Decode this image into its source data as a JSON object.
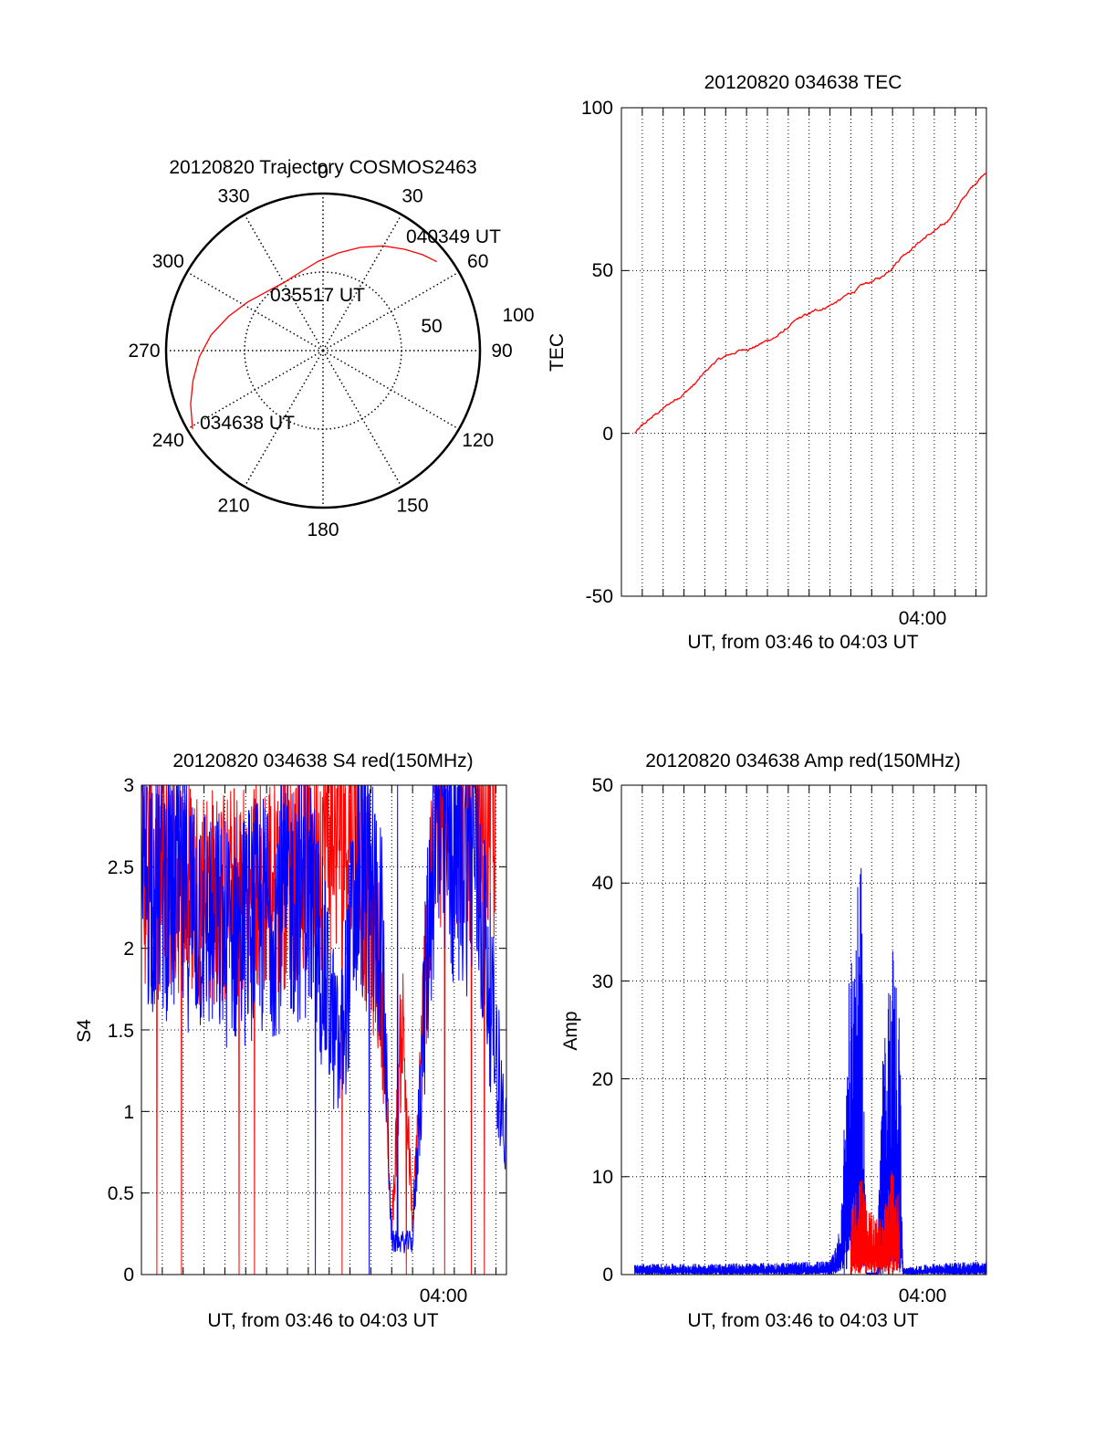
{
  "colors": {
    "red": "#ff0000",
    "blue": "#0000ff",
    "axis": "#000000"
  },
  "polar": {
    "title": "20120820 Trajectory COSMOS2463",
    "azimuth_labels": [
      "0",
      "30",
      "60",
      "90",
      "120",
      "150",
      "180",
      "210",
      "240",
      "270",
      "300",
      "330"
    ],
    "ring_labels": [
      "50",
      "100"
    ],
    "chart_data": {
      "type": "polar-trajectory",
      "title": "20120820 Trajectory COSMOS2463",
      "rmax": 100,
      "rings": [
        50,
        100
      ],
      "azimuth_step_deg": 30,
      "trajectory": [
        {
          "az": 239,
          "r": 97
        },
        {
          "az": 248,
          "r": 91
        },
        {
          "az": 257,
          "r": 85
        },
        {
          "az": 267,
          "r": 79
        },
        {
          "az": 278,
          "r": 72
        },
        {
          "az": 290,
          "r": 64
        },
        {
          "az": 303,
          "r": 57
        },
        {
          "az": 316,
          "r": 52
        },
        {
          "az": 330,
          "r": 50
        },
        {
          "az": 344,
          "r": 52
        },
        {
          "az": 357,
          "r": 57
        },
        {
          "az": 9,
          "r": 63
        },
        {
          "az": 20,
          "r": 70
        },
        {
          "az": 30,
          "r": 77
        },
        {
          "az": 39,
          "r": 83
        },
        {
          "az": 46,
          "r": 88
        },
        {
          "az": 52,
          "r": 92
        }
      ],
      "annotations": [
        {
          "text": "040349 UT",
          "az": 52,
          "r": 92
        },
        {
          "text": "035517 UT",
          "az": 330,
          "r": 50
        },
        {
          "text": "034638 UT",
          "az": 239,
          "r": 97
        }
      ]
    }
  },
  "tec": {
    "title": "20120820 034638 TEC",
    "ylabel": "TEC",
    "xlabel": "UT, from 03:46 to 04:03 UT",
    "yticks": [
      "100",
      "50",
      "0",
      "-50"
    ],
    "xtick_label": "04:00",
    "chart_data": {
      "type": "line",
      "title": "20120820 034638 TEC",
      "xlabel": "UT, from 03:46 to 04:03 UT",
      "ylabel": "TEC",
      "xlim": [
        "03:46:00",
        "04:03:30"
      ],
      "ylim": [
        -50,
        100
      ],
      "series": [
        {
          "color": "#ff0000",
          "points": [
            [
              "03:46:38",
              0
            ],
            [
              "03:47:30",
              5
            ],
            [
              "03:48:30",
              10
            ],
            [
              "03:49:30",
              15
            ],
            [
              "03:50:30",
              22
            ],
            [
              "03:51:30",
              25
            ],
            [
              "03:52:30",
              27
            ],
            [
              "03:53:30",
              30
            ],
            [
              "03:54:30",
              35
            ],
            [
              "03:55:30",
              38
            ],
            [
              "03:56:30",
              41
            ],
            [
              "03:57:30",
              45
            ],
            [
              "03:58:30",
              48
            ],
            [
              "03:59:30",
              55
            ],
            [
              "04:00:30",
              60
            ],
            [
              "04:01:30",
              64
            ],
            [
              "04:02:30",
              73
            ],
            [
              "04:03:30",
              81
            ]
          ]
        }
      ]
    }
  },
  "s4": {
    "title": "20120820 034638 S4 red(150MHz)",
    "ylabel": "S4",
    "xlabel": "UT, from 03:46 to 04:03 UT",
    "yticks": [
      "3",
      "2.5",
      "2",
      "1.5",
      "1",
      "0.5",
      "0"
    ],
    "xtick_label": "04:00",
    "chart_data": {
      "type": "line",
      "title": "20120820 034638 S4 red(150MHz)",
      "xlabel": "UT, from 03:46 to 04:03 UT",
      "ylabel": "S4",
      "xlim": [
        "03:46:00",
        "04:03:30"
      ],
      "ylim": [
        0,
        3
      ],
      "series": [
        {
          "color": "#0000ff",
          "points": [
            [
              "03:46:00",
              2.5
            ],
            [
              "03:48:00",
              2.3
            ],
            [
              "03:50:00",
              2.1
            ],
            [
              "03:52:00",
              2.2
            ],
            [
              "03:54:00",
              2.4
            ],
            [
              "03:55:30",
              1.3
            ],
            [
              "03:56:30",
              2.6
            ],
            [
              "03:57:30",
              2.1
            ],
            [
              "03:58:00",
              0.2
            ],
            [
              "03:58:30",
              0.2
            ],
            [
              "03:59:00",
              0.2
            ],
            [
              "04:00:00",
              2.7
            ],
            [
              "04:02:00",
              2.6
            ],
            [
              "04:03:30",
              0.8
            ]
          ]
        },
        {
          "color": "#ff0000",
          "points": [
            [
              "03:46:00",
              2.5
            ],
            [
              "03:48:00",
              2.4
            ],
            [
              "03:50:00",
              2.3
            ],
            [
              "03:52:00",
              2.4
            ],
            [
              "03:54:00",
              2.6
            ],
            [
              "03:56:00",
              2.8
            ],
            [
              "03:57:30",
              1.8
            ],
            [
              "03:58:00",
              0.25
            ],
            [
              "03:58:30",
              1.6
            ],
            [
              "03:59:00",
              0.3
            ],
            [
              "04:00:00",
              2.8
            ],
            [
              "04:02:00",
              2.9
            ],
            [
              "04:03:00",
              2.8
            ]
          ]
        }
      ]
    }
  },
  "amp": {
    "title": "20120820 034638 Amp red(150MHz)",
    "ylabel": "Amp",
    "xlabel": "UT, from 03:46 to 04:03 UT",
    "yticks": [
      "50",
      "40",
      "30",
      "20",
      "10",
      "0"
    ],
    "xtick_label": "04:00",
    "chart_data": {
      "type": "line",
      "title": "20120820 034638 Amp red(150MHz)",
      "xlabel": "UT, from 03:46 to 04:03 UT",
      "ylabel": "Amp",
      "xlim": [
        "03:46:00",
        "04:03:30"
      ],
      "ylim": [
        0,
        50
      ],
      "series": [
        {
          "color": "#0000ff",
          "points": [
            [
              "03:46:38",
              0.8
            ],
            [
              "03:50:00",
              0.8
            ],
            [
              "03:54:00",
              0.9
            ],
            [
              "03:56:00",
              1.0
            ],
            [
              "03:56:30",
              3.5
            ],
            [
              "03:57:00",
              25
            ],
            [
              "03:57:30",
              30
            ],
            [
              "03:57:45",
              0.2
            ],
            [
              "03:58:15",
              0.2
            ],
            [
              "03:58:30",
              15
            ],
            [
              "03:59:00",
              25
            ],
            [
              "03:59:20",
              20
            ],
            [
              "03:59:30",
              0.5
            ],
            [
              "04:01:00",
              0.8
            ],
            [
              "04:03:30",
              1.0
            ]
          ]
        },
        {
          "color": "#ff0000",
          "points": [
            [
              "03:57:00",
              5
            ],
            [
              "03:57:30",
              8
            ],
            [
              "03:57:45",
              5
            ],
            [
              "03:58:30",
              4
            ],
            [
              "03:59:00",
              8
            ],
            [
              "03:59:20",
              6
            ]
          ]
        }
      ]
    }
  }
}
